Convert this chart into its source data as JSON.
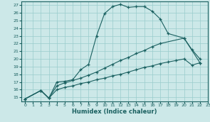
{
  "bg_color": "#cce8e8",
  "line_color": "#1a6060",
  "grid_color": "#99cccc",
  "xlabel": "Humidex (Indice chaleur)",
  "xlim": [
    -0.5,
    23
  ],
  "ylim": [
    14.5,
    27.5
  ],
  "xticks": [
    0,
    1,
    2,
    3,
    4,
    5,
    6,
    7,
    8,
    9,
    10,
    11,
    12,
    13,
    14,
    15,
    16,
    17,
    18,
    19,
    20,
    21,
    22,
    23
  ],
  "yticks": [
    15,
    16,
    17,
    18,
    19,
    20,
    21,
    22,
    23,
    24,
    25,
    26,
    27
  ],
  "line1_x": [
    0,
    2,
    3,
    4,
    5,
    6,
    7,
    8,
    9,
    10,
    11,
    12,
    13,
    14,
    15,
    16,
    17,
    18,
    20,
    21,
    22
  ],
  "line1_y": [
    14.8,
    15.9,
    14.9,
    17.0,
    17.1,
    17.3,
    18.6,
    19.3,
    23.0,
    25.9,
    26.8,
    27.1,
    26.7,
    26.8,
    26.8,
    26.2,
    25.2,
    23.3,
    22.7,
    21.2,
    20.0
  ],
  "line2_x": [
    0,
    2,
    3,
    4,
    5,
    6,
    7,
    8,
    9,
    10,
    11,
    12,
    13,
    14,
    15,
    16,
    17,
    20,
    22
  ],
  "line2_y": [
    14.8,
    15.9,
    14.9,
    16.5,
    16.9,
    17.2,
    17.5,
    17.9,
    18.3,
    18.8,
    19.3,
    19.8,
    20.2,
    20.7,
    21.1,
    21.6,
    22.0,
    22.7,
    19.5
  ],
  "line3_x": [
    0,
    2,
    3,
    4,
    5,
    6,
    7,
    8,
    9,
    10,
    11,
    12,
    13,
    14,
    15,
    16,
    17,
    18,
    19,
    20,
    21,
    22
  ],
  "line3_y": [
    14.8,
    15.9,
    14.9,
    16.0,
    16.3,
    16.5,
    16.8,
    17.0,
    17.3,
    17.5,
    17.8,
    18.0,
    18.3,
    18.6,
    18.9,
    19.1,
    19.4,
    19.6,
    19.8,
    20.0,
    19.2,
    19.5
  ]
}
